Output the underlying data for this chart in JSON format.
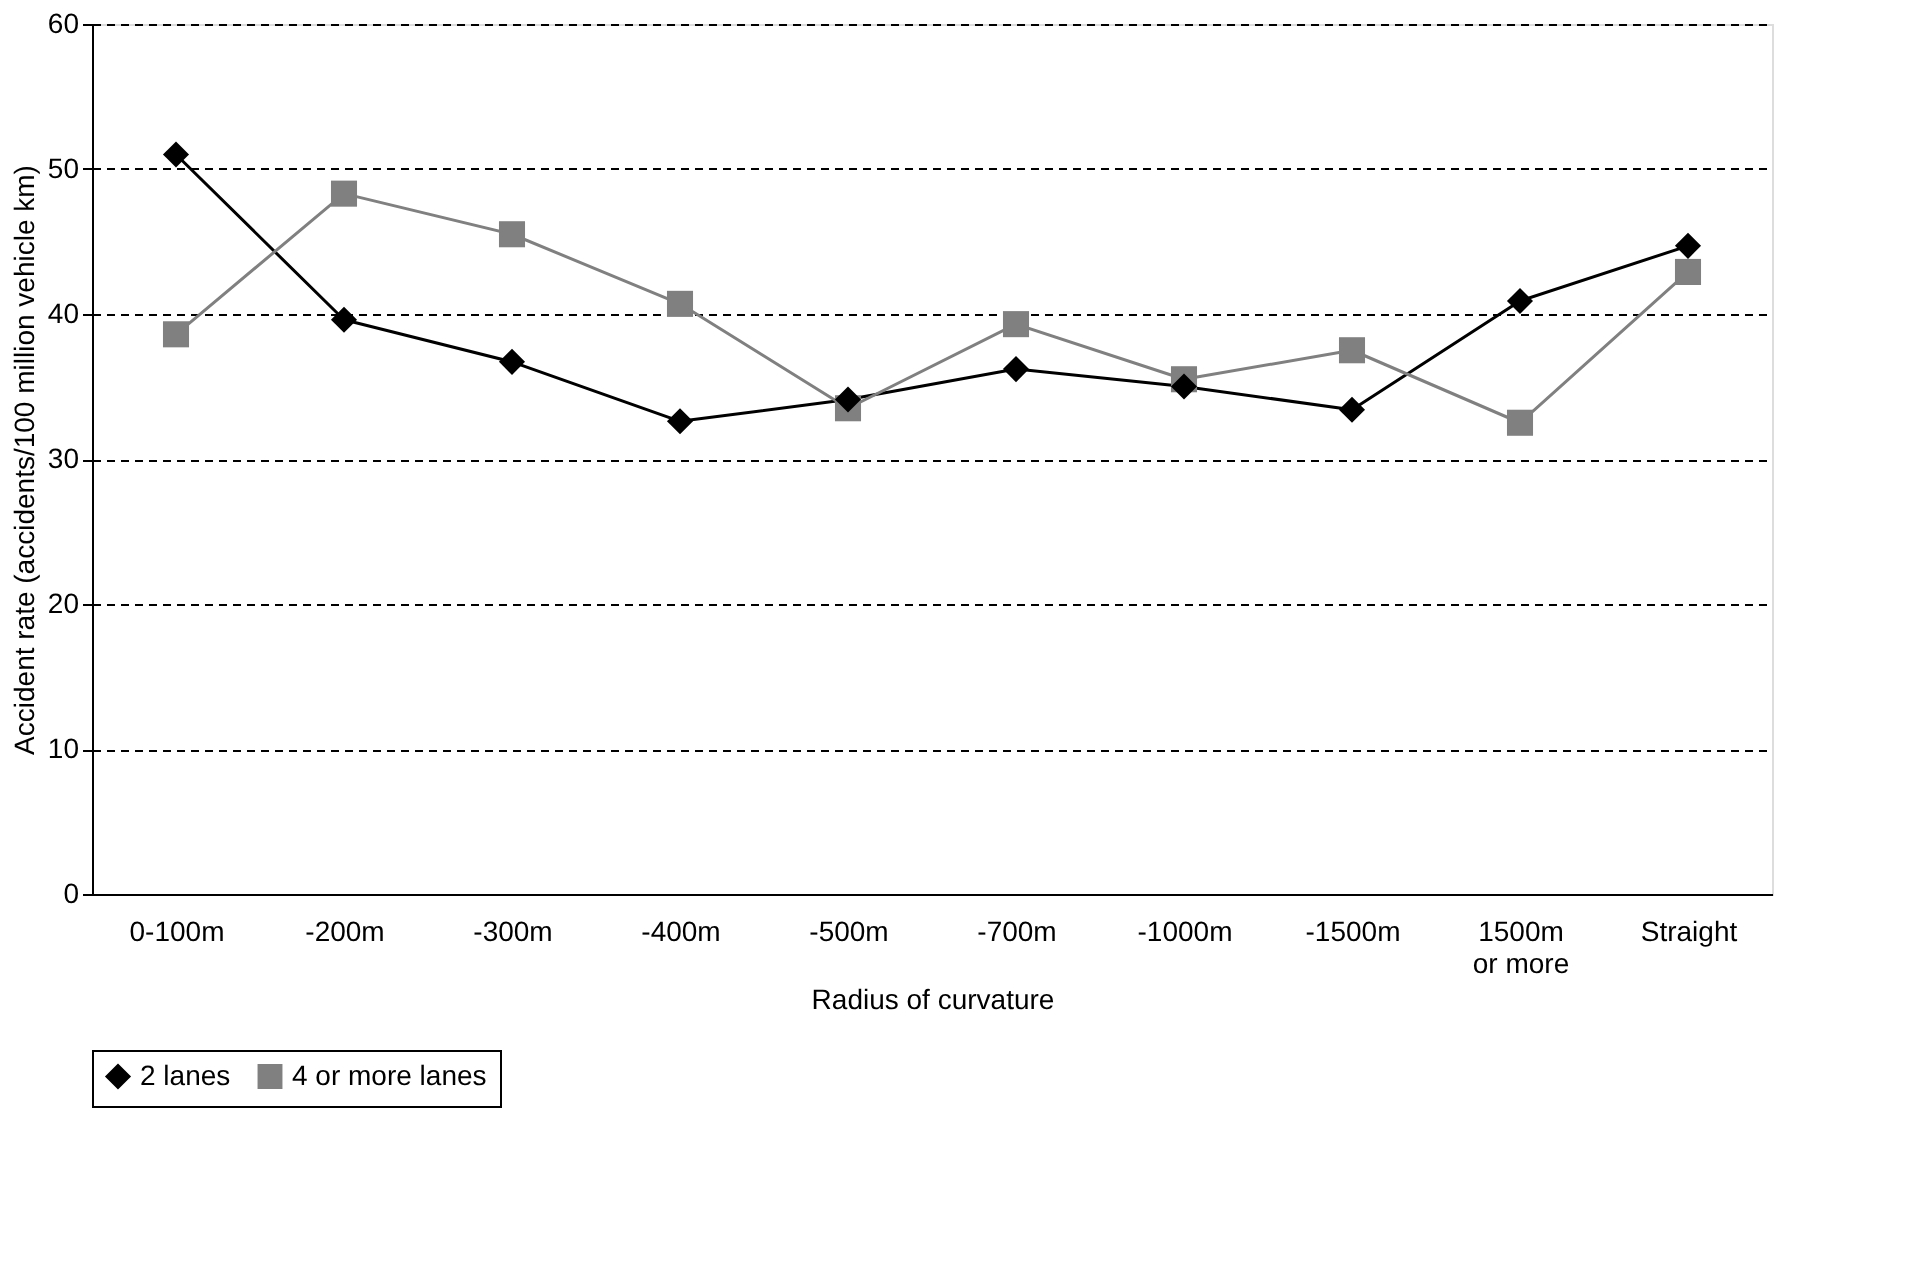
{
  "chart_data": {
    "type": "line",
    "xlabel": "Radius of curvature",
    "ylabel": "Accident rate (accidents/100 million vehicle km)",
    "categories": [
      "0-100m",
      "-200m",
      "-300m",
      "-400m",
      "-500m",
      "-700m",
      "-1000m",
      "-1500m",
      "1500m or more",
      "Straight"
    ],
    "series": [
      {
        "name": "2 lanes",
        "color": "#000000",
        "marker": "diamond",
        "values": [
          51.0,
          39.6,
          36.7,
          32.6,
          34.1,
          36.2,
          35.0,
          33.4,
          40.9,
          44.7
        ]
      },
      {
        "name": "4 or more lanes",
        "color": "#808080",
        "marker": "square",
        "values": [
          38.6,
          48.3,
          45.5,
          40.7,
          33.5,
          39.3,
          35.5,
          37.5,
          32.5,
          42.9
        ]
      }
    ],
    "ylim": [
      0,
      60
    ],
    "yticks": [
      0,
      10,
      20,
      30,
      40,
      50,
      60
    ],
    "grid": "y",
    "legend": "bottom",
    "line_style": "solid"
  }
}
